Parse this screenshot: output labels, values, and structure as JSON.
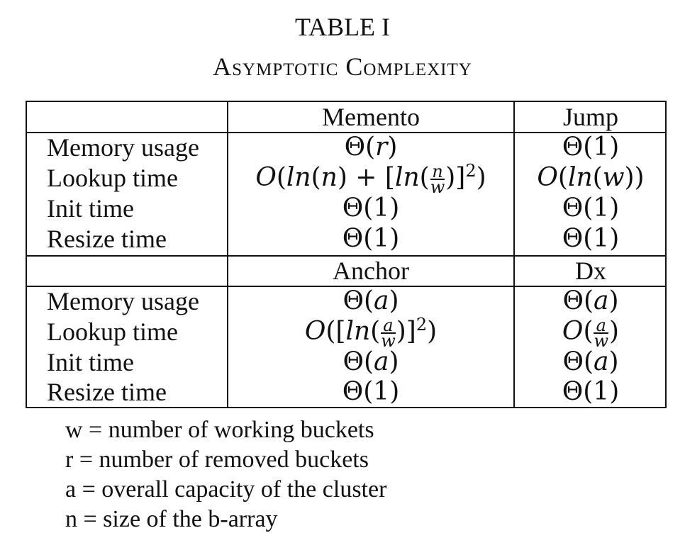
{
  "caption": {
    "number": "TABLE I",
    "title": "Asymptotic Complexity"
  },
  "table": {
    "groups": [
      {
        "headers": [
          "Memento",
          "Jump"
        ],
        "rows": [
          {
            "label": "Memory usage",
            "cells": [
              "Θ(r)",
              "Θ(1)"
            ]
          },
          {
            "label": "Lookup time",
            "cells": [
              "O(ln(n) + [ln(n/w)]²)",
              "O(ln(w))"
            ]
          },
          {
            "label": "Init time",
            "cells": [
              "Θ(1)",
              "Θ(1)"
            ]
          },
          {
            "label": "Resize time",
            "cells": [
              "Θ(1)",
              "Θ(1)"
            ]
          }
        ]
      },
      {
        "headers": [
          "Anchor",
          "Dx"
        ],
        "rows": [
          {
            "label": "Memory usage",
            "cells": [
              "Θ(a)",
              "Θ(a)"
            ]
          },
          {
            "label": "Lookup time",
            "cells": [
              "O([ln(a/w)]²)",
              "O(a/w)"
            ]
          },
          {
            "label": "Init time",
            "cells": [
              "Θ(a)",
              "Θ(a)"
            ]
          },
          {
            "label": "Resize time",
            "cells": [
              "Θ(1)",
              "Θ(1)"
            ]
          }
        ]
      }
    ]
  },
  "notes": [
    "w = number of working buckets",
    "r = number of removed buckets",
    "a = overall capacity of the cluster",
    "n = size of the b-array"
  ]
}
